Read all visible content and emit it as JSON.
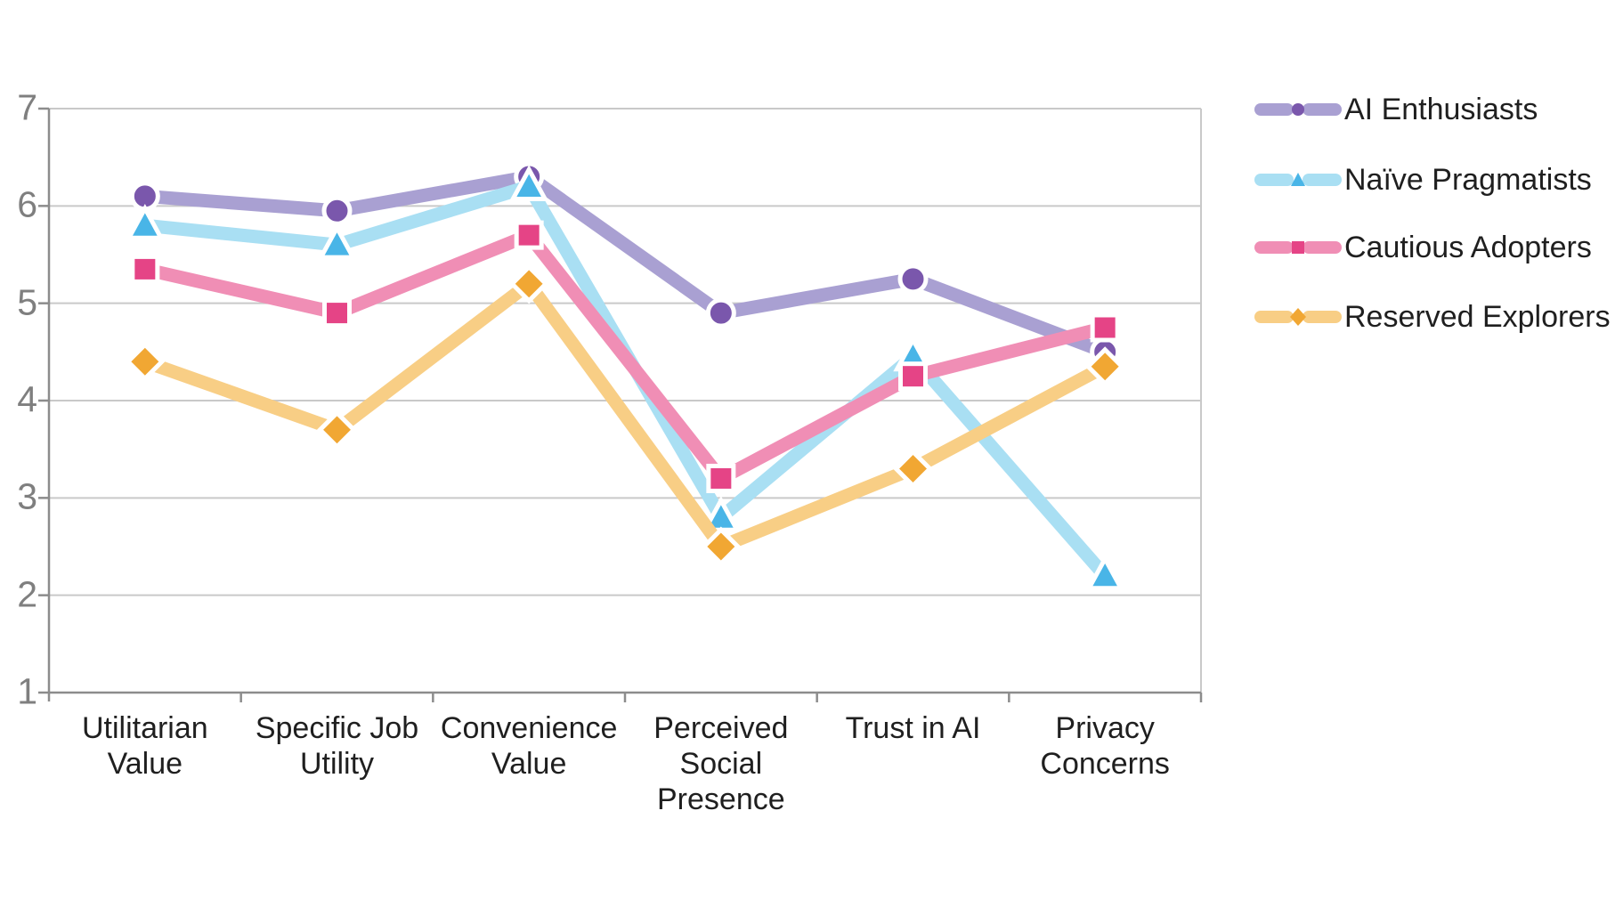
{
  "chart_data": {
    "type": "line",
    "title": "",
    "xlabel": "",
    "ylabel": "",
    "ylim": [
      1,
      7
    ],
    "yticks": [
      7,
      6,
      5,
      4,
      3,
      2,
      1
    ],
    "grid": true,
    "legend_position": "right",
    "categories": [
      "Utilitarian Value",
      "Specific Job Utility",
      "Convenience Value",
      "Perceived Social Presence",
      "Trust in AI",
      "Privacy Concerns"
    ],
    "tick_label_lines": [
      "Utilitarian\nValue",
      "Specific Job\nUtility",
      "Convenience\nValue",
      "Perceived\nSocial\nPresence",
      "Trust in AI",
      "Privacy\nConcerns"
    ],
    "series": [
      {
        "name": "AI Enthusiasts",
        "marker": "circle",
        "line_color": "#a9a0d2",
        "marker_color": "#7a57ac",
        "values": [
          6.1,
          5.95,
          6.3,
          4.9,
          5.25,
          4.5
        ]
      },
      {
        "name": "Naïve Pragmatists",
        "marker": "triangle",
        "line_color": "#a9dff3",
        "marker_color": "#49b5e7",
        "values": [
          5.8,
          5.6,
          6.2,
          2.8,
          4.45,
          2.2
        ]
      },
      {
        "name": "Cautious Adopters",
        "marker": "square",
        "line_color": "#f08eb5",
        "marker_color": "#e54486",
        "values": [
          5.35,
          4.9,
          5.7,
          3.2,
          4.25,
          4.75
        ]
      },
      {
        "name": "Reserved Explorers",
        "marker": "diamond",
        "line_color": "#f8ce85",
        "marker_color": "#f1a733",
        "values": [
          4.4,
          3.7,
          5.2,
          2.5,
          3.3,
          4.35
        ]
      }
    ]
  },
  "style_colors": {
    "gridline": "#c9c9c9",
    "axis": "#8c8c8c",
    "ytick_text": "#7f7f7f",
    "xtick_text": "#1f1f1f",
    "background": "#ffffff"
  }
}
